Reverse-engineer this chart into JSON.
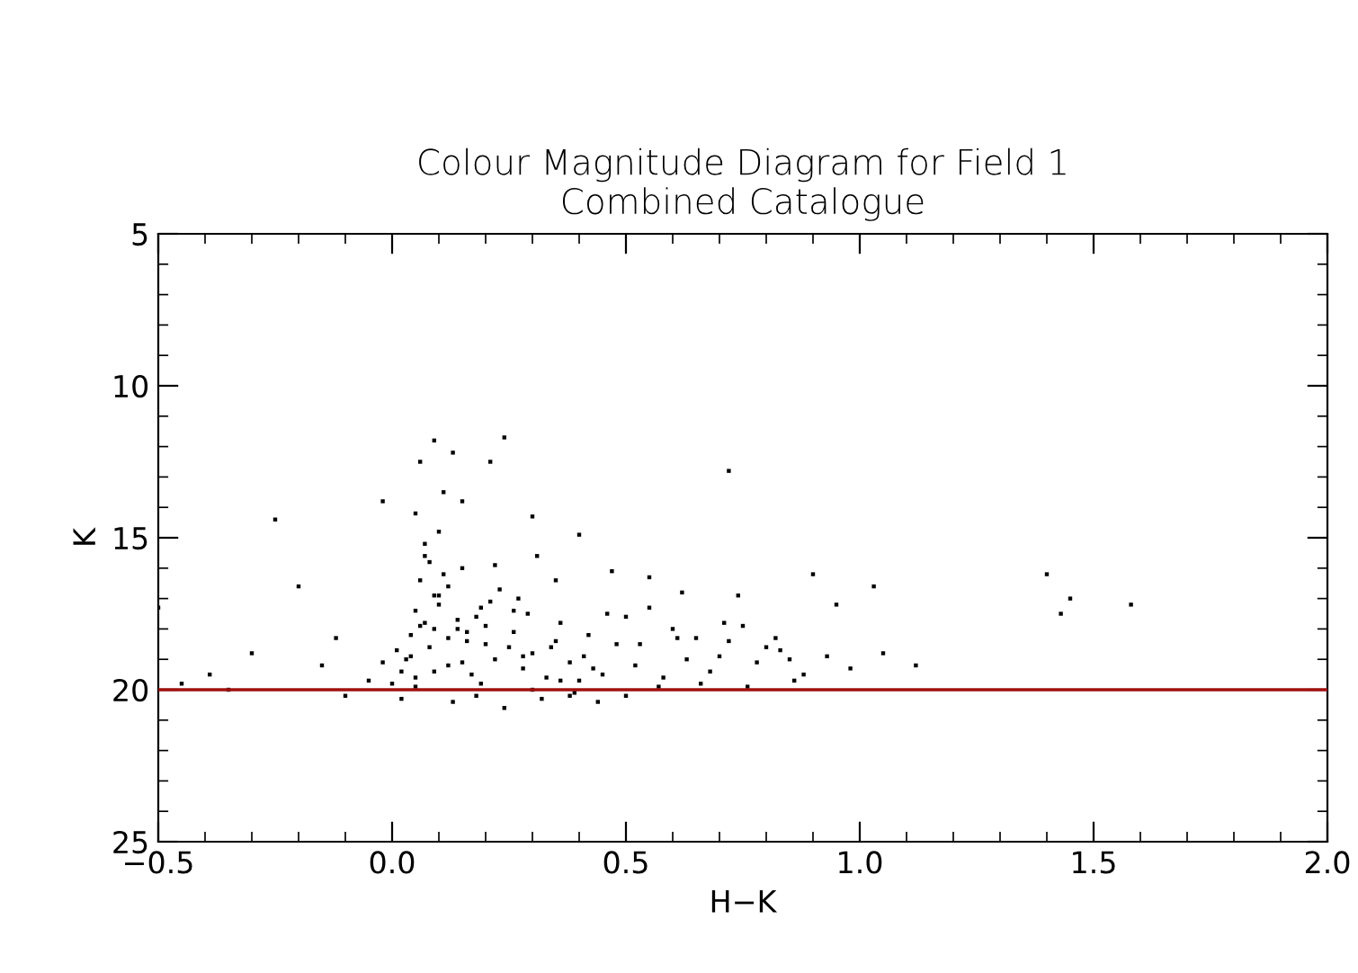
{
  "chart_data": {
    "type": "scatter",
    "title": "Colour Magnitude Diagram for Field 1\nCombined Catalogue",
    "xlabel": "H−K",
    "ylabel": "K",
    "xlim": [
      -0.5,
      2.0
    ],
    "xticks": [
      {
        "value": -0.5,
        "label": "−0.5"
      },
      {
        "value": 0.0,
        "label": "0.0"
      },
      {
        "value": 0.5,
        "label": "0.5"
      },
      {
        "value": 1.0,
        "label": "1.0"
      },
      {
        "value": 1.5,
        "label": "1.5"
      },
      {
        "value": 2.0,
        "label": "2.0"
      }
    ],
    "ylim": [
      25,
      5
    ],
    "yticks": [
      5,
      10,
      15,
      20,
      25
    ],
    "grid": false,
    "marker": "square",
    "ref_lines": [
      {
        "axis": "y",
        "value": 20,
        "color": "#a01010"
      }
    ],
    "series": [
      {
        "color": "#000000",
        "x": [
          0.09,
          0.24,
          0.06,
          0.13,
          0.11,
          0.21,
          0.72,
          0.15,
          0.05,
          0.4,
          -0.25,
          -0.02,
          0.1,
          0.3,
          0.9,
          1.03,
          1.4,
          1.45,
          1.58,
          1.43,
          0.85,
          0.74,
          -0.5,
          -0.45,
          -0.39,
          -0.3,
          -0.2,
          -0.12,
          -0.05,
          -0.1,
          -0.35,
          -0.15,
          0.07,
          0.08,
          0.06,
          0.09,
          0.12,
          0.05,
          0.07,
          0.1,
          0.04,
          0.08,
          0.14,
          0.18,
          0.2,
          0.16,
          0.03,
          0.02,
          0.0,
          0.01,
          0.05,
          0.12,
          0.17,
          0.22,
          0.25,
          0.28,
          0.3,
          0.33,
          0.35,
          0.38,
          0.4,
          0.43,
          0.45,
          0.26,
          0.19,
          0.11,
          0.07,
          0.15,
          0.23,
          0.29,
          0.36,
          0.42,
          0.48,
          0.5,
          0.55,
          0.6,
          0.65,
          0.7,
          0.75,
          0.8,
          0.52,
          0.58,
          0.63,
          0.68,
          0.72,
          0.78,
          0.83,
          0.88,
          0.93,
          0.98,
          1.05,
          1.12,
          0.95,
          0.62,
          0.55,
          0.47,
          0.35,
          0.31,
          0.27,
          0.21,
          0.14,
          0.09,
          0.04,
          -0.02,
          0.02,
          0.13,
          0.18,
          0.24,
          0.32,
          0.39,
          0.44,
          0.5,
          0.57,
          0.66,
          0.76,
          0.86,
          0.12,
          0.2,
          0.28,
          0.36,
          0.06,
          0.16,
          0.26,
          0.34,
          0.41,
          0.46,
          0.53,
          0.61,
          0.71,
          0.82,
          0.09,
          0.19,
          0.3,
          0.38,
          0.22,
          0.1,
          0.05,
          0.15
        ],
        "values": [
          11.8,
          11.7,
          12.5,
          12.2,
          13.5,
          12.5,
          12.8,
          13.8,
          14.2,
          14.9,
          14.4,
          13.8,
          14.8,
          14.3,
          16.2,
          16.6,
          16.2,
          17.0,
          17.2,
          17.5,
          19.0,
          16.9,
          17.3,
          19.8,
          19.5,
          18.8,
          16.6,
          18.3,
          19.7,
          20.2,
          20.0,
          19.2,
          15.2,
          15.8,
          16.4,
          16.9,
          16.6,
          17.4,
          17.8,
          17.2,
          18.2,
          18.6,
          18.0,
          17.6,
          17.9,
          18.4,
          19.0,
          19.4,
          19.8,
          18.7,
          19.6,
          19.2,
          19.5,
          19.0,
          18.6,
          19.3,
          18.8,
          19.6,
          18.4,
          19.1,
          19.7,
          19.3,
          19.5,
          18.1,
          17.3,
          16.2,
          15.6,
          16.0,
          16.7,
          17.5,
          17.8,
          18.2,
          18.5,
          17.6,
          17.3,
          18.0,
          18.3,
          18.9,
          17.9,
          18.6,
          19.2,
          19.6,
          19.0,
          19.4,
          18.4,
          19.1,
          18.7,
          19.5,
          18.9,
          19.3,
          18.8,
          19.2,
          17.2,
          16.8,
          16.3,
          16.1,
          16.4,
          15.6,
          17.0,
          17.1,
          17.7,
          18.0,
          18.9,
          19.1,
          20.3,
          20.4,
          20.2,
          20.6,
          20.3,
          20.1,
          20.4,
          20.2,
          19.9,
          19.8,
          19.9,
          19.7,
          18.3,
          18.5,
          18.9,
          19.7,
          17.9,
          18.1,
          17.4,
          18.6,
          18.9,
          17.5,
          18.5,
          18.3,
          17.8,
          18.3,
          19.4,
          19.8,
          20.0,
          20.2,
          15.9,
          16.9,
          19.9,
          19.1
        ]
      }
    ]
  }
}
